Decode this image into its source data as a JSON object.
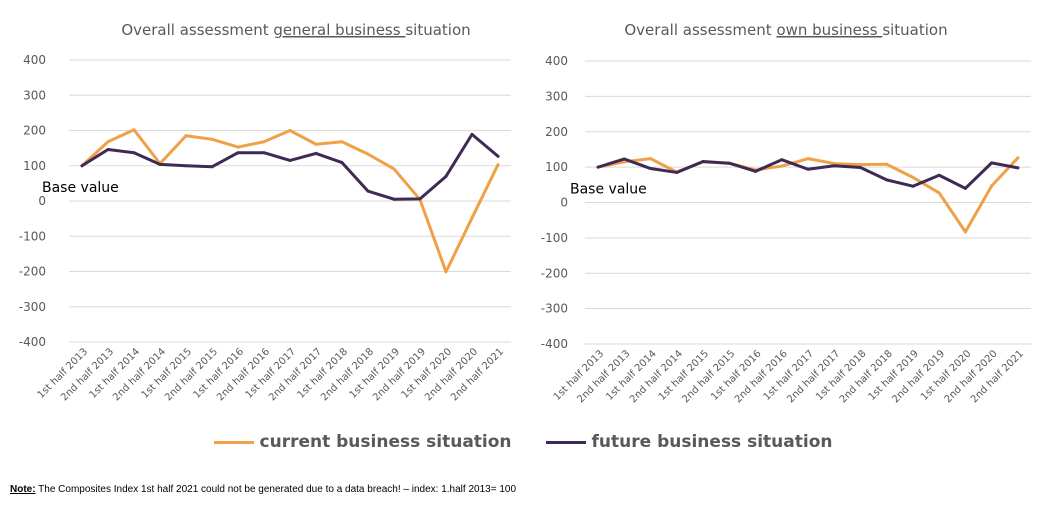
{
  "colors": {
    "current": "#F0A047",
    "future": "#3E2A55",
    "grid": "#D9D9D9",
    "text": "#595959"
  },
  "chart_data": [
    {
      "type": "line",
      "title_parts": [
        "Overall assessment ",
        "general business ",
        "situation"
      ],
      "categories": [
        "1st half 2013",
        "2nd half 2013",
        "1st half 2014",
        "2nd half 2014",
        "1st half 2015",
        "2nd half 2015",
        "1st half 2016",
        "2nd half 2016",
        "1st half 2017",
        "2nd half 2017",
        "1st half 2018",
        "2nd half 2018",
        "1st half 2019",
        "2nd half 2019",
        "1st half 2020",
        "2nd half 2020",
        "2nd half 2021"
      ],
      "series": [
        {
          "name": "current business situation",
          "values": [
            100,
            168,
            202,
            106,
            185,
            175,
            153,
            168,
            200,
            161,
            168,
            133,
            91,
            4,
            -201,
            -48,
            103
          ]
        },
        {
          "name": "future business situation",
          "values": [
            100,
            146,
            137,
            104,
            100,
            97,
            137,
            137,
            115,
            135,
            109,
            28,
            5,
            6,
            70,
            189,
            127
          ]
        }
      ],
      "ylim": [
        -400,
        400
      ],
      "yticks": [
        -400,
        -300,
        -200,
        -100,
        0,
        100,
        200,
        300,
        400
      ],
      "annotation": "Base value"
    },
    {
      "type": "line",
      "title_parts": [
        "Overall assessment ",
        "own business ",
        "situation"
      ],
      "categories": [
        "1st half 2013",
        "2nd half 2013",
        "1st half 2014",
        "2nd half 2014",
        "1st half 2015",
        "2nd half 2015",
        "1st half 2016",
        "2nd half 2016",
        "1st half 2017",
        "2nd half 2017",
        "1st half 2018",
        "2nd half 2018",
        "1st half 2019",
        "2nd half 2019",
        "1st half 2020",
        "2nd half 2020",
        "2nd half 2021"
      ],
      "series": [
        {
          "name": "current business situation",
          "values": [
            100,
            115,
            124,
            86,
            115,
            111,
            92,
            103,
            124,
            110,
            107,
            108,
            71,
            27,
            -83,
            47,
            126
          ]
        },
        {
          "name": "future business situation",
          "values": [
            100,
            123,
            96,
            85,
            116,
            111,
            88,
            121,
            94,
            104,
            99,
            64,
            46,
            77,
            40,
            112,
            98
          ]
        }
      ],
      "ylim": [
        -400,
        400
      ],
      "yticks": [
        -400,
        -300,
        -200,
        -100,
        0,
        100,
        200,
        300,
        400
      ],
      "annotation": "Base value"
    }
  ],
  "legend": {
    "current": "current business situation",
    "future": "future business situation"
  },
  "note": {
    "label": "Note:",
    "text": " The Composites Index 1st half  2021 could not be generated due to a data breach! – index: 1.half 2013= 100"
  }
}
